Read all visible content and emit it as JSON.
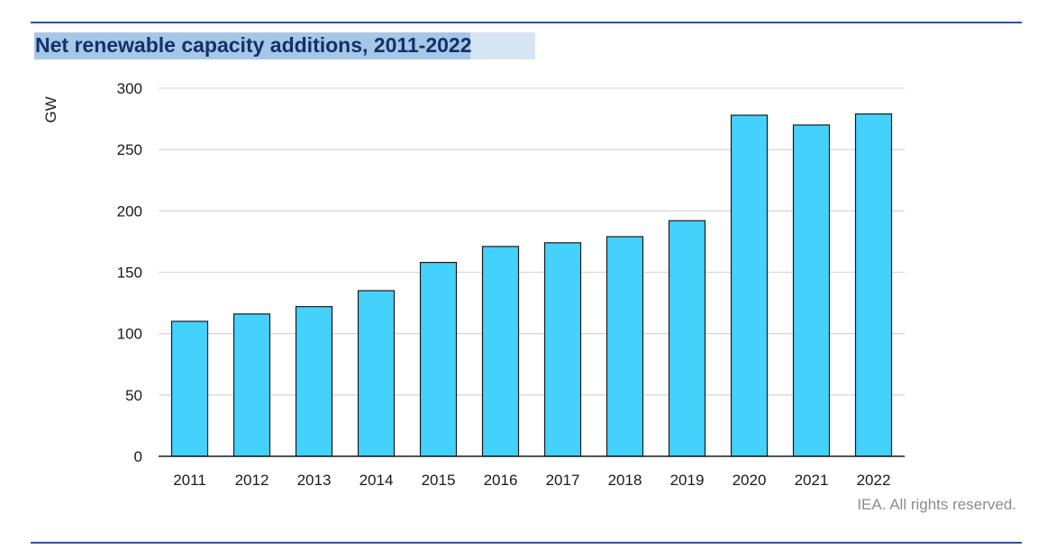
{
  "title": "Net renewable capacity additions, 2011-2022",
  "credit": "IEA. All rights reserved.",
  "colors": {
    "bar": "#44d1fc",
    "bar_stroke": "#1a1a1a",
    "grid": "#d9d9d9",
    "rule": "#34518a",
    "title": "#13306b"
  },
  "chart_data": {
    "type": "bar",
    "title": "Net renewable capacity additions, 2011-2022",
    "xlabel": "",
    "ylabel": "GW",
    "categories": [
      "2011",
      "2012",
      "2013",
      "2014",
      "2015",
      "2016",
      "2017",
      "2018",
      "2019",
      "2020",
      "2021",
      "2022"
    ],
    "values": [
      110,
      116,
      122,
      135,
      158,
      171,
      174,
      179,
      192,
      278,
      270,
      279
    ],
    "ylim": [
      0,
      300
    ],
    "yticks": [
      0,
      50,
      100,
      150,
      200,
      250,
      300
    ],
    "grid": true,
    "legend": "none"
  }
}
